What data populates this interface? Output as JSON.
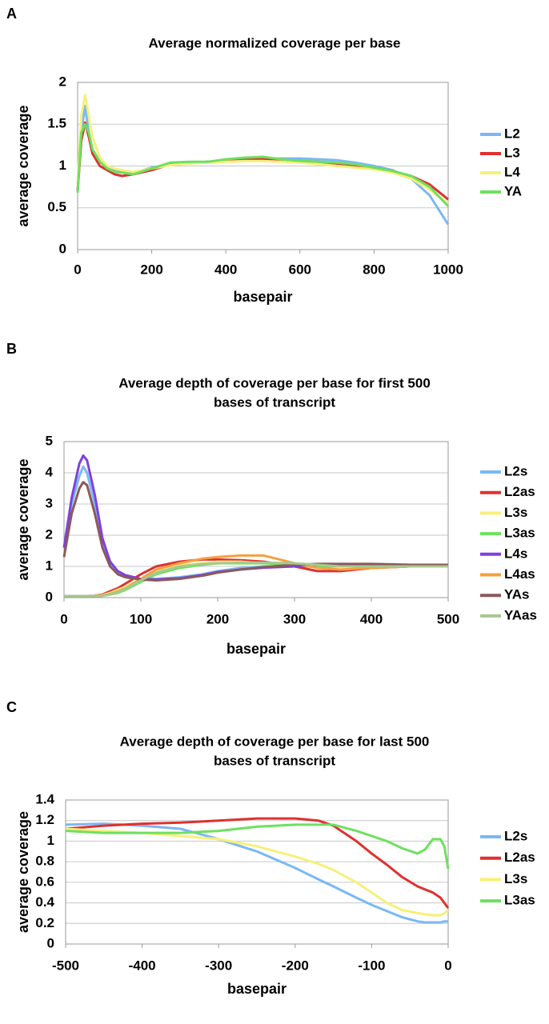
{
  "chart_data": [
    {
      "type": "line",
      "panel": "A",
      "title": [
        "Average normalized coverage per base"
      ],
      "x_label": "basepair",
      "y_label": "average coverage",
      "xlim": [
        0,
        1000
      ],
      "xticks": [
        0,
        200,
        400,
        600,
        800,
        1000
      ],
      "ylim": [
        0,
        2
      ],
      "yticks": [
        0,
        0.5,
        1,
        1.5,
        2
      ],
      "grid": true,
      "x": [
        0,
        10,
        20,
        30,
        40,
        60,
        80,
        100,
        120,
        150,
        200,
        250,
        300,
        350,
        400,
        450,
        500,
        550,
        600,
        650,
        700,
        750,
        800,
        850,
        900,
        950,
        1000
      ],
      "series": [
        {
          "name": "L2",
          "color": "#7ab8f5",
          "values": [
            0.7,
            1.4,
            1.72,
            1.4,
            1.2,
            1.05,
            0.98,
            0.95,
            0.93,
            0.92,
            0.98,
            1.02,
            1.03,
            1.05,
            1.07,
            1.08,
            1.09,
            1.09,
            1.09,
            1.08,
            1.07,
            1.04,
            1.0,
            0.95,
            0.85,
            0.65,
            0.3
          ]
        },
        {
          "name": "L3",
          "color": "#e03030",
          "values": [
            0.7,
            1.3,
            1.52,
            1.35,
            1.15,
            1.0,
            0.95,
            0.9,
            0.88,
            0.9,
            0.95,
            1.02,
            1.04,
            1.05,
            1.06,
            1.08,
            1.08,
            1.07,
            1.06,
            1.05,
            1.03,
            1.01,
            0.98,
            0.94,
            0.88,
            0.78,
            0.6
          ]
        },
        {
          "name": "L4",
          "color": "#f7f07a",
          "values": [
            0.8,
            1.6,
            1.85,
            1.6,
            1.35,
            1.1,
            1.0,
            0.97,
            0.95,
            0.93,
            0.97,
            1.01,
            1.03,
            1.04,
            1.05,
            1.06,
            1.06,
            1.05,
            1.04,
            1.02,
            1.0,
            0.98,
            0.96,
            0.92,
            0.85,
            0.72,
            0.55
          ]
        },
        {
          "name": "YA",
          "color": "#6ee060",
          "values": [
            0.68,
            1.4,
            1.5,
            1.4,
            1.2,
            1.05,
            0.97,
            0.93,
            0.92,
            0.9,
            0.97,
            1.04,
            1.05,
            1.05,
            1.08,
            1.1,
            1.11,
            1.08,
            1.06,
            1.05,
            1.04,
            1.02,
            0.98,
            0.94,
            0.88,
            0.75,
            0.52
          ]
        }
      ]
    },
    {
      "type": "line",
      "panel": "B",
      "title": [
        "Average depth of coverage per base for first 500",
        "bases of transcript"
      ],
      "x_label": "basepair",
      "y_label": "average coverage",
      "xlim": [
        0,
        500
      ],
      "xticks": [
        0,
        100,
        200,
        300,
        400,
        500
      ],
      "ylim": [
        0,
        5
      ],
      "yticks": [
        0,
        1,
        2,
        3,
        4,
        5
      ],
      "grid": true,
      "x": [
        0,
        10,
        20,
        25,
        30,
        40,
        50,
        60,
        70,
        80,
        100,
        120,
        150,
        180,
        200,
        230,
        260,
        300,
        330,
        360,
        400,
        450,
        500
      ],
      "series": [
        {
          "name": "L2s",
          "color": "#7ab8f5",
          "values": [
            1.6,
            3.0,
            3.9,
            4.2,
            4.0,
            3.0,
            1.8,
            1.1,
            0.8,
            0.7,
            0.6,
            0.6,
            0.65,
            0.75,
            0.85,
            0.95,
            1.0,
            1.0,
            1.0,
            1.0,
            1.0,
            1.0,
            1.0
          ]
        },
        {
          "name": "L2as",
          "color": "#e03030",
          "values": [
            0.05,
            0.05,
            0.05,
            0.05,
            0.05,
            0.06,
            0.1,
            0.2,
            0.3,
            0.45,
            0.75,
            1.0,
            1.15,
            1.22,
            1.22,
            1.2,
            1.15,
            1.0,
            0.85,
            0.85,
            0.95,
            1.0,
            1.0
          ]
        },
        {
          "name": "L3s",
          "color": "#f7f07a",
          "values": [
            0.05,
            0.05,
            0.05,
            0.05,
            0.05,
            0.05,
            0.08,
            0.15,
            0.25,
            0.35,
            0.6,
            0.85,
            1.05,
            1.1,
            1.15,
            1.15,
            1.1,
            1.05,
            1.0,
            1.0,
            1.0,
            1.0,
            1.0
          ]
        },
        {
          "name": "L3as",
          "color": "#6ee060",
          "values": [
            0.05,
            0.05,
            0.05,
            0.05,
            0.05,
            0.05,
            0.06,
            0.1,
            0.15,
            0.25,
            0.5,
            0.75,
            0.95,
            1.05,
            1.1,
            1.1,
            1.1,
            1.05,
            1.0,
            1.0,
            1.0,
            1.0,
            1.0
          ]
        },
        {
          "name": "L4s",
          "color": "#8040e0",
          "values": [
            1.6,
            3.2,
            4.3,
            4.55,
            4.4,
            3.3,
            1.9,
            1.15,
            0.85,
            0.72,
            0.6,
            0.58,
            0.62,
            0.72,
            0.82,
            0.9,
            0.96,
            1.0,
            1.05,
            1.05,
            1.05,
            1.05,
            1.05
          ]
        },
        {
          "name": "L4as",
          "color": "#f5a040",
          "values": [
            0.05,
            0.05,
            0.05,
            0.05,
            0.05,
            0.05,
            0.07,
            0.12,
            0.2,
            0.3,
            0.6,
            0.9,
            1.1,
            1.25,
            1.3,
            1.35,
            1.35,
            1.1,
            0.95,
            0.9,
            0.95,
            1.0,
            1.0
          ]
        },
        {
          "name": "YAs",
          "color": "#8b5a5a",
          "values": [
            1.3,
            2.7,
            3.5,
            3.7,
            3.6,
            2.7,
            1.6,
            1.0,
            0.75,
            0.65,
            0.58,
            0.55,
            0.6,
            0.7,
            0.8,
            0.9,
            0.98,
            1.05,
            1.08,
            1.08,
            1.08,
            1.05,
            1.05
          ]
        },
        {
          "name": "YAas",
          "color": "#a8c890",
          "values": [
            0.05,
            0.05,
            0.05,
            0.05,
            0.05,
            0.05,
            0.06,
            0.1,
            0.18,
            0.28,
            0.55,
            0.8,
            1.0,
            1.08,
            1.1,
            1.12,
            1.12,
            1.1,
            1.05,
            1.0,
            1.0,
            1.0,
            1.0
          ]
        }
      ]
    },
    {
      "type": "line",
      "panel": "C",
      "title": [
        "Average depth of coverage per base for last 500",
        "bases of transcript"
      ],
      "x_label": "basepair",
      "y_label": "average coverage",
      "xlim": [
        -500,
        0
      ],
      "xticks": [
        -500,
        -400,
        -300,
        -200,
        -100,
        0
      ],
      "ylim": [
        0,
        1.4
      ],
      "yticks": [
        0,
        0.2,
        0.4,
        0.6,
        0.8,
        1,
        1.2,
        1.4
      ],
      "grid": true,
      "x": [
        -500,
        -450,
        -400,
        -350,
        -300,
        -250,
        -200,
        -170,
        -150,
        -120,
        -100,
        -80,
        -60,
        -40,
        -30,
        -20,
        -10,
        -5,
        0
      ],
      "series": [
        {
          "name": "L2s",
          "color": "#7ab8f5",
          "values": [
            1.16,
            1.17,
            1.15,
            1.12,
            1.02,
            0.9,
            0.74,
            0.63,
            0.56,
            0.45,
            0.38,
            0.32,
            0.26,
            0.22,
            0.21,
            0.21,
            0.21,
            0.22,
            0.22
          ]
        },
        {
          "name": "L2as",
          "color": "#e03030",
          "values": [
            1.12,
            1.15,
            1.17,
            1.18,
            1.2,
            1.22,
            1.22,
            1.2,
            1.15,
            1.0,
            0.88,
            0.77,
            0.65,
            0.56,
            0.53,
            0.5,
            0.45,
            0.4,
            0.35
          ]
        },
        {
          "name": "L3s",
          "color": "#f7f07a",
          "values": [
            1.12,
            1.1,
            1.08,
            1.05,
            1.02,
            0.95,
            0.85,
            0.78,
            0.72,
            0.6,
            0.5,
            0.4,
            0.33,
            0.3,
            0.29,
            0.28,
            0.28,
            0.3,
            0.33
          ]
        },
        {
          "name": "L3as",
          "color": "#6ee060",
          "values": [
            1.1,
            1.08,
            1.08,
            1.08,
            1.1,
            1.14,
            1.16,
            1.16,
            1.16,
            1.1,
            1.05,
            1.0,
            0.93,
            0.88,
            0.92,
            1.02,
            1.02,
            0.95,
            0.73
          ]
        }
      ]
    }
  ]
}
